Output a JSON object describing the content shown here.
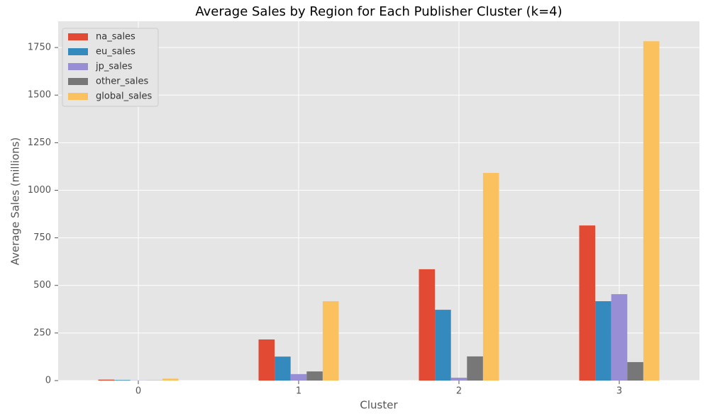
{
  "chart_data": {
    "type": "bar",
    "title": "Average Sales by Region for Each Publisher Cluster (k=4)",
    "x_label": "Cluster",
    "y_label": "Average Sales (millions)",
    "categories": [
      "0",
      "1",
      "2",
      "3"
    ],
    "series": [
      {
        "name": "na_sales",
        "color": "#E24A33",
        "values": [
          5,
          216,
          585,
          815
        ]
      },
      {
        "name": "eu_sales",
        "color": "#348ABD",
        "values": [
          3,
          126,
          372,
          417
        ]
      },
      {
        "name": "jp_sales",
        "color": "#988ED5",
        "values": [
          1,
          34,
          15,
          454
        ]
      },
      {
        "name": "other_sales",
        "color": "#777777",
        "values": [
          1,
          48,
          127,
          97
        ]
      },
      {
        "name": "global_sales",
        "color": "#FBC15E",
        "values": [
          10,
          417,
          1091,
          1783
        ]
      }
    ],
    "ylim": [
      0,
      1888
    ],
    "yticks": [
      0,
      250,
      500,
      750,
      1000,
      1250,
      1500,
      1750
    ],
    "grid": true,
    "legend": "upper-left"
  }
}
